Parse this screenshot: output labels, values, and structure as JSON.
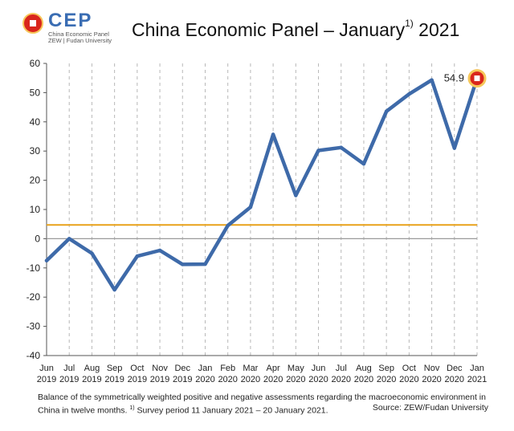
{
  "logo": {
    "word": "CEP",
    "line1": "China Economic Panel",
    "line2": "ZEW | Fudan University"
  },
  "title": {
    "main": "China Economic Panel – January",
    "sup": "1)",
    "year": " 2021"
  },
  "footnote": {
    "text_a": "Balance of the symmetrically weighted positive and negative assessments regarding the macroeconomic environment in China in twelve months. ",
    "sup": "1)",
    "text_b": " Survey period 11 January 2021 – 20 January 2021.",
    "source": "Source: ZEW/Fudan University"
  },
  "colors": {
    "line": "#3e6aa9",
    "reference": "#e8a21a",
    "zero": "#9a9a9a",
    "grid": "#b8b8b8",
    "marker_ring": "#f6c75a",
    "marker_fill": "#d9261c"
  },
  "chart_data": {
    "type": "line",
    "ylim": [
      -40,
      60
    ],
    "yticks": [
      60,
      50,
      40,
      30,
      20,
      10,
      0,
      -10,
      -20,
      -30,
      -40
    ],
    "categories": [
      [
        "Jun",
        "2019"
      ],
      [
        "Jul",
        "2019"
      ],
      [
        "Aug",
        "2019"
      ],
      [
        "Sep",
        "2019"
      ],
      [
        "Oct",
        "2019"
      ],
      [
        "Nov",
        "2019"
      ],
      [
        "Dec",
        "2019"
      ],
      [
        "Jan",
        "2020"
      ],
      [
        "Feb",
        "2020"
      ],
      [
        "Mar",
        "2020"
      ],
      [
        "Apr",
        "2020"
      ],
      [
        "May",
        "2020"
      ],
      [
        "Jun",
        "2020"
      ],
      [
        "Jul",
        "2020"
      ],
      [
        "Aug",
        "2020"
      ],
      [
        "Sep",
        "2020"
      ],
      [
        "Oct",
        "2020"
      ],
      [
        "Nov",
        "2020"
      ],
      [
        "Dec",
        "2020"
      ],
      [
        "Jan",
        "2021"
      ]
    ],
    "values": [
      -7.5,
      0,
      -5,
      -17.5,
      -6,
      -4,
      -8.8,
      -8.7,
      4.5,
      10.8,
      35.7,
      14.8,
      30.2,
      31.2,
      25.6,
      43.6,
      49.5,
      54.3,
      31,
      54.9
    ],
    "reference_line": 4.7,
    "last_value_label": "54.9",
    "grid": true
  }
}
